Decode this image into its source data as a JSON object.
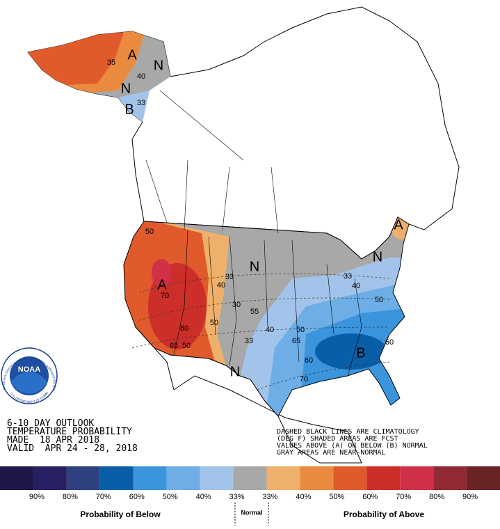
{
  "map_labels": [
    "A",
    "N",
    "35",
    "40",
    "N",
    "B",
    "33",
    "50",
    "A",
    "70",
    "80",
    "65",
    "50",
    "40",
    "33",
    "N",
    "30",
    "55",
    "50",
    "40",
    "50",
    "65",
    "33",
    "N",
    "60",
    "70",
    "B",
    "60",
    "50",
    "40",
    "33",
    "N",
    "A"
  ],
  "logo": {
    "name": "NOAA",
    "ring_top": "NATIONAL OCEANIC AND ATMOSPHERIC ADMINISTRATION",
    "ring_bottom": "U.S. DEPARTMENT OF COMMERCE"
  },
  "outlook": [
    "6-10 DAY OUTLOOK",
    "TEMPERATURE PROBABILITY",
    "MADE  18 APR 2018",
    "VALID  APR 24 - 28, 2018"
  ],
  "notes": [
    "DASHED BLACK LINES ARE CLIMATOLOGY",
    "(DEG F) SHADED AREAS ARE FCST",
    "VALUES ABOVE (A) OR BELOW (B) NORMAL",
    "GRAY AREAS ARE NEAR-NORMAL"
  ],
  "legend": {
    "colors": [
      "#1e1748",
      "#272163",
      "#2e4080",
      "#0a5ea8",
      "#3a95dc",
      "#6eaee6",
      "#a2c4ea",
      "#a8a8a8",
      "#eeb06a",
      "#ea8a3e",
      "#e05a2c",
      "#cc2e2a",
      "#d03048",
      "#922a34",
      "#6a2428"
    ],
    "labels": [
      "90%",
      "80%",
      "70%",
      "60%",
      "50%",
      "40%",
      "33%",
      "33%",
      "40%",
      "50%",
      "60%",
      "70%",
      "80%",
      "90%"
    ],
    "below": "Probability of Below",
    "normal": "Normal",
    "above": "Probability of Above"
  }
}
